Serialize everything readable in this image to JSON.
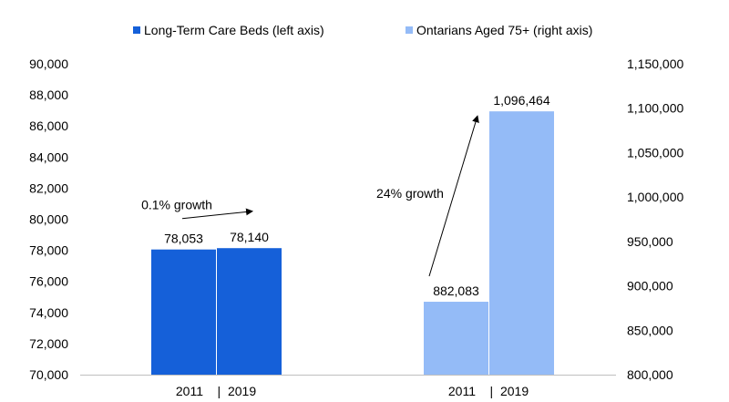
{
  "chart_data": {
    "type": "bar",
    "title": "",
    "legend": {
      "placement": "top",
      "entries": [
        {
          "name": "Long-Term Care Beds (left axis)",
          "color": "#1560D9"
        },
        {
          "name": "Ontarians Aged 75+ (right axis)",
          "color": "#94BBF7"
        }
      ]
    },
    "left_axis": {
      "ylim": [
        70000,
        90000
      ],
      "ticks": [
        70000,
        72000,
        74000,
        76000,
        78000,
        80000,
        82000,
        84000,
        86000,
        88000,
        90000
      ],
      "tick_labels": [
        "70,000",
        "72,000",
        "74,000",
        "76,000",
        "78,000",
        "80,000",
        "82,000",
        "84,000",
        "86,000",
        "88,000",
        "90,000"
      ]
    },
    "right_axis": {
      "ylim": [
        800000,
        1150000
      ],
      "ticks": [
        800000,
        850000,
        900000,
        950000,
        1000000,
        1050000,
        1100000,
        1150000
      ],
      "tick_labels": [
        "800,000",
        "850,000",
        "900,000",
        "950,000",
        "1,000,000",
        "1,050,000",
        "1,100,000",
        "1,150,000"
      ]
    },
    "grid": false,
    "groups": [
      {
        "series": "Long-Term Care Beds (left axis)",
        "axis": "left",
        "color": "#1560D9",
        "categories": [
          "2011",
          "2019"
        ],
        "category_label": "2011    |  2019",
        "values": [
          78053,
          78140
        ],
        "data_labels": [
          "78,053",
          "78,140"
        ],
        "annotation": "0.1% growth"
      },
      {
        "series": "Ontarians Aged 75+ (right axis)",
        "axis": "right",
        "color": "#94BBF7",
        "categories": [
          "2011",
          "2019"
        ],
        "category_label": "2011    |  2019",
        "values": [
          882083,
          1096464
        ],
        "data_labels": [
          "882,083",
          "1,096,464"
        ],
        "annotation": "24% growth"
      }
    ]
  }
}
